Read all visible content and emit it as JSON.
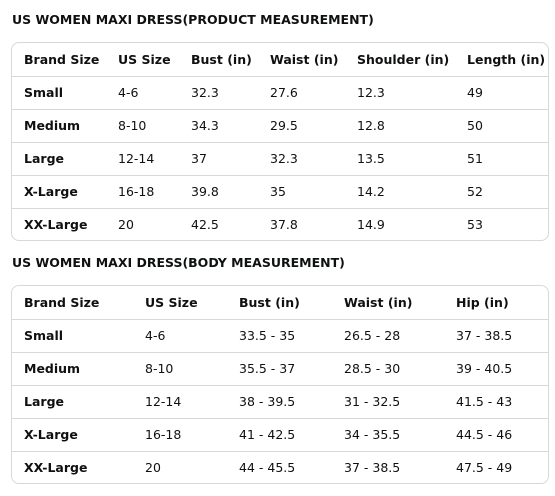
{
  "product_table": {
    "title": "US WOMEN MAXI DRESS(PRODUCT MEASUREMENT)",
    "headers": [
      "Brand Size",
      "US Size",
      "Bust (in)",
      "Waist (in)",
      "Shoulder (in)",
      "Length (in)"
    ],
    "rows": [
      [
        "Small",
        "4-6",
        "32.3",
        "27.6",
        "12.3",
        "49"
      ],
      [
        "Medium",
        "8-10",
        "34.3",
        "29.5",
        "12.8",
        "50"
      ],
      [
        "Large",
        "12-14",
        "37",
        "32.3",
        "13.5",
        "51"
      ],
      [
        "X-Large",
        "16-18",
        "39.8",
        "35",
        "14.2",
        "52"
      ],
      [
        "XX-Large",
        "20",
        "42.5",
        "37.8",
        "14.9",
        "53"
      ]
    ]
  },
  "body_table": {
    "title": "US WOMEN MAXI DRESS(BODY MEASUREMENT)",
    "headers": [
      "Brand Size",
      "US Size",
      "Bust (in)",
      "Waist (in)",
      "Hip (in)"
    ],
    "rows": [
      [
        "Small",
        "4-6",
        "33.5 - 35",
        "26.5 - 28",
        "37 - 38.5"
      ],
      [
        "Medium",
        "8-10",
        "35.5 - 37",
        "28.5 - 30",
        "39 - 40.5"
      ],
      [
        "Large",
        "12-14",
        "38 - 39.5",
        "31 - 32.5",
        "41.5 - 43"
      ],
      [
        "X-Large",
        "16-18",
        "41 - 42.5",
        "34 - 35.5",
        "44.5 - 46"
      ],
      [
        "XX-Large",
        "20",
        "44 - 45.5",
        "37 - 38.5",
        "47.5 - 49"
      ]
    ]
  }
}
